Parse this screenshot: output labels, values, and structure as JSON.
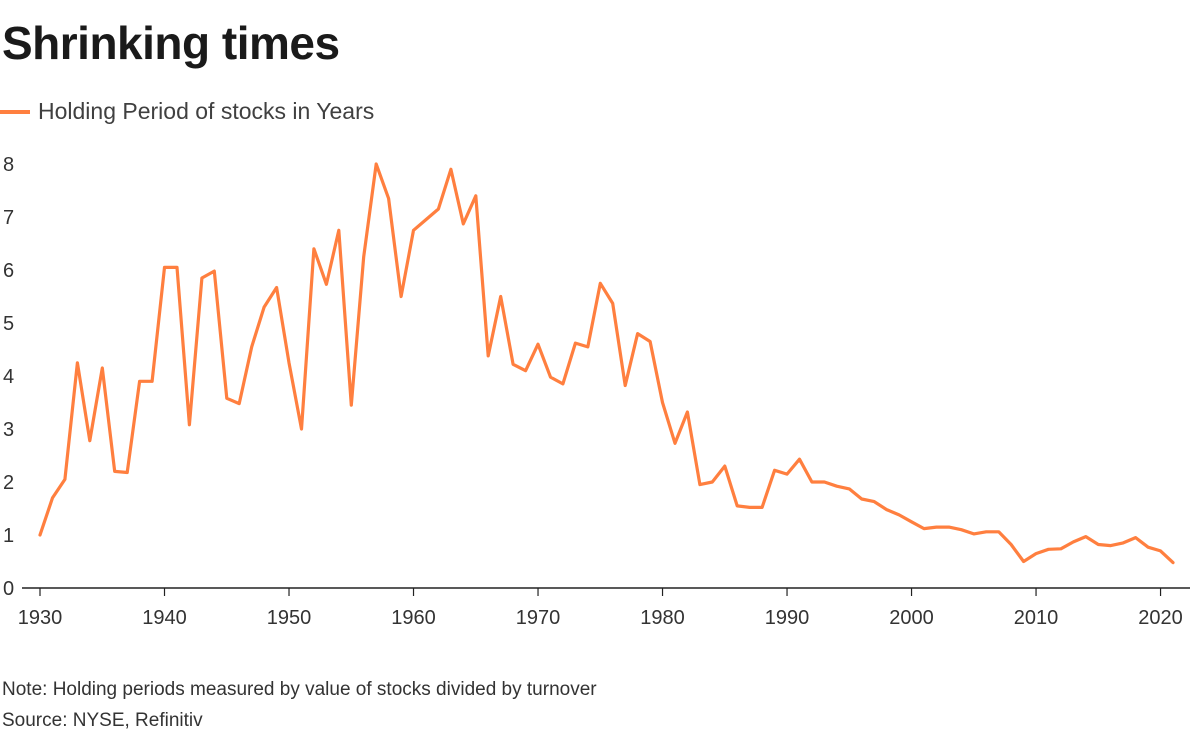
{
  "title": "Shrinking times",
  "legend": {
    "label": "Holding Period of stocks in Years"
  },
  "note": "Note: Holding periods measured by value of stocks divided by turnover",
  "source": "Source: NYSE, Refinitiv",
  "colors": {
    "line": "#ff7f3f",
    "axis": "#222222",
    "text": "#333333"
  },
  "chart_data": {
    "type": "line",
    "title": "Shrinking times",
    "xlabel": "",
    "ylabel": "",
    "xlim": [
      1930,
      2021
    ],
    "ylim": [
      0,
      8
    ],
    "grid": false,
    "legend": "top-left",
    "x_ticks": [
      1930,
      1940,
      1950,
      1960,
      1970,
      1980,
      1990,
      2000,
      2010,
      2020
    ],
    "y_ticks": [
      0,
      1,
      2,
      3,
      4,
      5,
      6,
      7,
      8
    ],
    "series": [
      {
        "name": "Holding Period of stocks in Years",
        "x": [
          1930,
          1931,
          1932,
          1933,
          1934,
          1935,
          1936,
          1937,
          1938,
          1939,
          1940,
          1941,
          1942,
          1943,
          1944,
          1945,
          1946,
          1947,
          1948,
          1949,
          1950,
          1951,
          1952,
          1953,
          1954,
          1955,
          1956,
          1957,
          1958,
          1959,
          1960,
          1961,
          1962,
          1963,
          1964,
          1965,
          1966,
          1967,
          1968,
          1969,
          1970,
          1971,
          1972,
          1973,
          1974,
          1975,
          1976,
          1977,
          1978,
          1979,
          1980,
          1981,
          1982,
          1983,
          1984,
          1985,
          1986,
          1987,
          1988,
          1989,
          1990,
          1991,
          1992,
          1993,
          1994,
          1995,
          1996,
          1997,
          1998,
          1999,
          2000,
          2001,
          2002,
          2003,
          2004,
          2005,
          2006,
          2007,
          2008,
          2009,
          2010,
          2011,
          2012,
          2013,
          2014,
          2015,
          2016,
          2017,
          2018,
          2019,
          2020,
          2021
        ],
        "values": [
          1.0,
          1.7,
          2.05,
          4.25,
          2.78,
          4.15,
          2.2,
          2.18,
          3.9,
          3.9,
          6.05,
          6.05,
          3.08,
          5.85,
          5.98,
          3.58,
          3.48,
          4.55,
          5.3,
          5.67,
          4.25,
          3.0,
          6.4,
          5.73,
          6.75,
          3.45,
          6.25,
          8.0,
          7.35,
          5.5,
          6.75,
          6.95,
          7.15,
          7.9,
          6.87,
          7.4,
          4.38,
          5.5,
          4.22,
          4.1,
          4.6,
          3.98,
          3.85,
          4.62,
          4.55,
          5.75,
          5.37,
          3.82,
          4.8,
          4.65,
          3.5,
          2.73,
          3.32,
          1.95,
          2.0,
          2.3,
          1.55,
          1.52,
          1.52,
          2.22,
          2.15,
          2.43,
          2.0,
          2.0,
          1.92,
          1.87,
          1.68,
          1.63,
          1.48,
          1.38,
          1.25,
          1.12,
          1.15,
          1.15,
          1.1,
          1.02,
          1.06,
          1.06,
          0.82,
          0.5,
          0.65,
          0.73,
          0.74,
          0.87,
          0.97,
          0.82,
          0.8,
          0.85,
          0.95,
          0.77,
          0.7,
          0.48
        ]
      }
    ]
  }
}
